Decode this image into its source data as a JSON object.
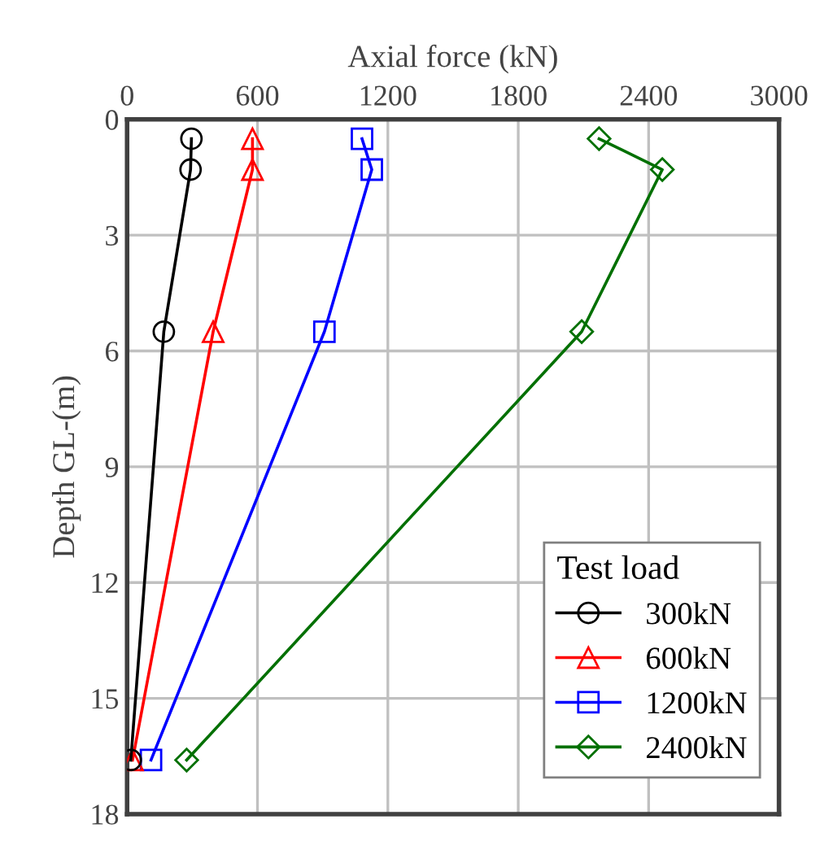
{
  "chart_data": {
    "type": "line",
    "xlabel": "Axial force (kN)",
    "ylabel": "Depth GL-(m)",
    "legend_title": "Test load",
    "xlim": [
      0,
      3000
    ],
    "xticks": [
      0,
      600,
      1200,
      1800,
      2400,
      3000
    ],
    "ylim": [
      18,
      0
    ],
    "yticks": [
      0,
      3,
      6,
      9,
      12,
      15,
      18
    ],
    "grid": true,
    "legend": "bottom right",
    "line_style": "solid",
    "series": [
      {
        "name": "300kN",
        "color": "#000000",
        "marker": "circle",
        "x": [
          296,
          292,
          169,
          17
        ],
        "values": [
          0.5,
          1.3,
          5.5,
          16.6
        ]
      },
      {
        "name": "600kN",
        "color": "#ff0000",
        "marker": "triangle",
        "x": [
          577,
          577,
          396,
          25
        ],
        "values": [
          0.5,
          1.3,
          5.5,
          16.6
        ]
      },
      {
        "name": "1200kN",
        "color": "#0000ff",
        "marker": "square",
        "x": [
          1081,
          1126,
          908,
          110
        ],
        "values": [
          0.5,
          1.3,
          5.5,
          16.6
        ]
      },
      {
        "name": "2400kN",
        "color": "#007000",
        "marker": "diamond",
        "x": [
          2172,
          2463,
          2092,
          274
        ],
        "values": [
          0.5,
          1.3,
          5.5,
          16.6
        ]
      }
    ]
  }
}
